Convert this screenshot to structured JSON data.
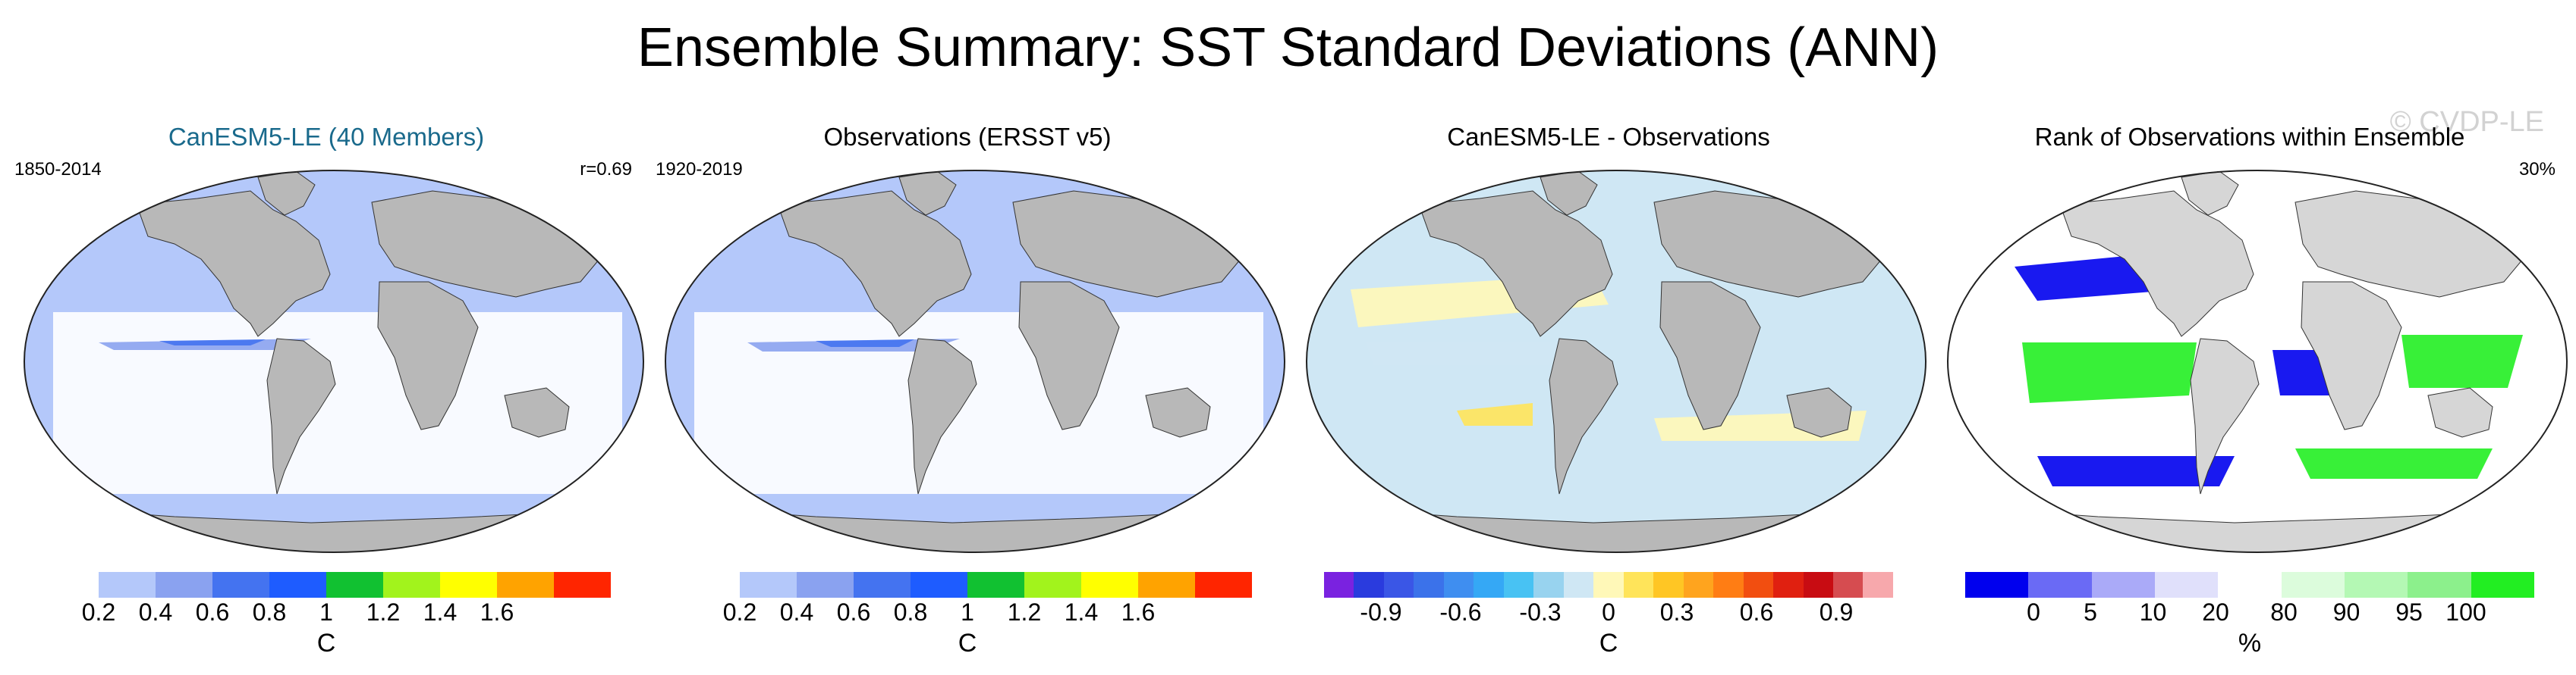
{
  "title": "Ensemble Summary: SST Standard Deviations (ANN)",
  "watermark": "© CVDP-LE",
  "panels": [
    {
      "title": "CanESM5-LE (40 Members)",
      "title_color": "#1a6a8c",
      "left_label": "1850-2014",
      "right_label": "r=0.69",
      "colorbar": {
        "colors": [
          "#ffffff",
          "#b4c8fa",
          "#8aa2f0",
          "#4473f0",
          "#1e5cff",
          "#11c131",
          "#a2f31c",
          "#ffff00",
          "#ffa300",
          "#ff2500"
        ],
        "ticks": [
          "0.2",
          "0.4",
          "0.6",
          "0.8",
          "1",
          "1.2",
          "1.4",
          "1.6"
        ],
        "unit": "C"
      }
    },
    {
      "title": "Observations (ERSST v5)",
      "title_color": "#000000",
      "left_label": "1920-2019",
      "right_label": "",
      "colorbar": {
        "colors": [
          "#ffffff",
          "#b4c8fa",
          "#8aa2f0",
          "#4473f0",
          "#1e5cff",
          "#11c131",
          "#a2f31c",
          "#ffff00",
          "#ffa300",
          "#ff2500"
        ],
        "ticks": [
          "0.2",
          "0.4",
          "0.6",
          "0.8",
          "1",
          "1.2",
          "1.4",
          "1.6"
        ],
        "unit": "C"
      }
    },
    {
      "title": "CanESM5-LE - Observations",
      "title_color": "#000000",
      "left_label": "",
      "right_label": "",
      "colorbar": {
        "colors": [
          "#7a22e0",
          "#2a3bde",
          "#3a56e6",
          "#3b72ea",
          "#3f8ef0",
          "#35a8f5",
          "#48c2f3",
          "#98d3ef",
          "#cfe7f4",
          "#fff8b8",
          "#ffe45a",
          "#ffc624",
          "#ffa41e",
          "#ff7d14",
          "#f24e10",
          "#e02010",
          "#c80c12",
          "#d64c50",
          "#f7a8ac"
        ],
        "ticks": [
          "-0.9",
          "-0.6",
          "-0.3",
          "0",
          "0.3",
          "0.6",
          "0.9"
        ],
        "unit": "C"
      }
    },
    {
      "title": "Rank of Observations within Ensemble",
      "title_color": "#000000",
      "left_label": "",
      "right_label": "30%",
      "colorbar": {
        "colors": [
          "#0000ee",
          "#6a6af5",
          "#aaaaf8",
          "#e0e0fb",
          "#ffffff",
          "#dcfcdc",
          "#b4f8b4",
          "#8cf08c",
          "#22ee22"
        ],
        "ticks": [
          "0",
          "5",
          "10",
          "20",
          "80",
          "90",
          "95",
          "100"
        ],
        "unit": "%"
      }
    }
  ]
}
